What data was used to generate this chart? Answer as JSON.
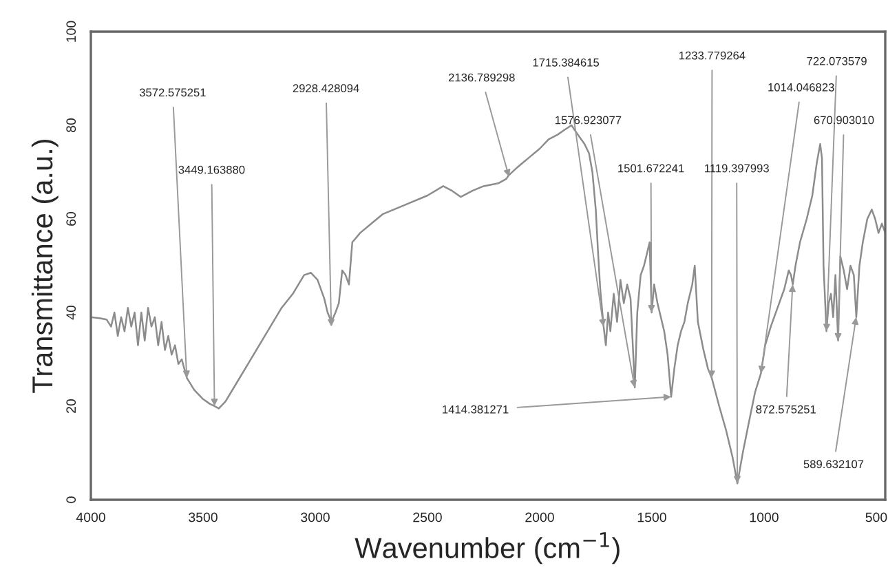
{
  "chart_data": {
    "type": "line",
    "xlabel": "Wavenumber (cm$^{−1}$)",
    "ylabel": "Transmittance (a.u.)",
    "xlim": [
      4000,
      460
    ],
    "ylim": [
      0,
      100
    ],
    "xticks": [
      4000,
      3500,
      3000,
      2500,
      2000,
      1500,
      1000,
      500
    ],
    "yticks": [
      0,
      20,
      40,
      60,
      80,
      100
    ],
    "grid": false,
    "series": [
      {
        "color": "#8c8c8c",
        "x": [
          4000,
          3960,
          3930,
          3910,
          3895,
          3880,
          3865,
          3850,
          3835,
          3820,
          3805,
          3790,
          3775,
          3760,
          3745,
          3730,
          3715,
          3700,
          3685,
          3670,
          3655,
          3640,
          3625,
          3610,
          3595,
          3572,
          3540,
          3500,
          3470,
          3449,
          3430,
          3400,
          3350,
          3300,
          3250,
          3200,
          3150,
          3100,
          3050,
          3020,
          2990,
          2960,
          2945,
          2928,
          2910,
          2895,
          2880,
          2865,
          2850,
          2835,
          2800,
          2750,
          2700,
          2600,
          2500,
          2430,
          2390,
          2352,
          2300,
          2250,
          2185,
          2150,
          2136,
          2100,
          2050,
          2000,
          1960,
          1920,
          1890,
          1858,
          1830,
          1800,
          1780,
          1765,
          1750,
          1740,
          1730,
          1715,
          1705,
          1695,
          1685,
          1670,
          1655,
          1640,
          1625,
          1610,
          1595,
          1576,
          1565,
          1550,
          1535,
          1520,
          1510,
          1501,
          1490,
          1475,
          1460,
          1445,
          1430,
          1414,
          1400,
          1385,
          1370,
          1355,
          1340,
          1320,
          1309,
          1295,
          1270,
          1250,
          1233,
          1200,
          1170,
          1140,
          1119,
          1095,
          1070,
          1040,
          1014,
          995,
          970,
          940,
          910,
          890,
          880,
          872,
          860,
          840,
          810,
          785,
          765,
          750,
          742,
          735,
          722,
          712,
          702,
          692,
          682,
          670,
          660,
          645,
          630,
          615,
          600,
          589,
          575,
          560,
          540,
          520,
          505,
          490,
          475,
          460
        ],
        "values": [
          39,
          38.8,
          38.5,
          37,
          40,
          35,
          39,
          36,
          41,
          37,
          40,
          33,
          40,
          34,
          41,
          37,
          39,
          33,
          38,
          32,
          35,
          31,
          33,
          29,
          30,
          26,
          23.5,
          21.5,
          20.5,
          20,
          19.5,
          21,
          25,
          29,
          33,
          37,
          41,
          44,
          48,
          48.5,
          47,
          43,
          40,
          38,
          40,
          42,
          49,
          48,
          46,
          55,
          57,
          59,
          61,
          63,
          65,
          67,
          66,
          64.7,
          66,
          67,
          67.6,
          68.5,
          69.4,
          71,
          73,
          75,
          77,
          78,
          79,
          80,
          78,
          76,
          74,
          70,
          62,
          53,
          45,
          37,
          33,
          40,
          36,
          44,
          38,
          47,
          42,
          46,
          43,
          24,
          40,
          48,
          50,
          53,
          55,
          40,
          46,
          42,
          39,
          36,
          31,
          22,
          28,
          33,
          36,
          38,
          42,
          46,
          50,
          38,
          32,
          28,
          26,
          20,
          15,
          9,
          3.5,
          10,
          16,
          23,
          27,
          33,
          37,
          41,
          45,
          49,
          48,
          46,
          50,
          55,
          60,
          65,
          72,
          76,
          73,
          50,
          36,
          42,
          44,
          39,
          48,
          34,
          52,
          49,
          45,
          50,
          48,
          39,
          50,
          55,
          60,
          62,
          60,
          57,
          59,
          57
        ]
      }
    ],
    "annotations": [
      {
        "text": "3572.575251",
        "x": 3572.575251,
        "y": 26
      },
      {
        "text": "3449.163880",
        "x": 3449.16388,
        "y": 20
      },
      {
        "text": "2928.428094",
        "x": 2928.428094,
        "y": 37
      },
      {
        "text": "2136.789298",
        "x": 2136.789298,
        "y": 69
      },
      {
        "text": "1715.384615",
        "x": 1715.384615,
        "y": 37
      },
      {
        "text": "1576.923077",
        "x": 1576.923077,
        "y": 24
      },
      {
        "text": "1501.672241",
        "x": 1501.672241,
        "y": 40
      },
      {
        "text": "1414.381271",
        "x": 1414.381271,
        "y": 22
      },
      {
        "text": "1233.779264",
        "x": 1233.779264,
        "y": 26
      },
      {
        "text": "1119.397993",
        "x": 1119.397993,
        "y": 3.5
      },
      {
        "text": "1014.046823",
        "x": 1014.046823,
        "y": 27
      },
      {
        "text": "872.575251",
        "x": 872.575251,
        "y": 46
      },
      {
        "text": "722.073579",
        "x": 722.073579,
        "y": 36
      },
      {
        "text": "670.903010",
        "x": 670.90301,
        "y": 34
      },
      {
        "text": "589.632107",
        "x": 589.632107,
        "y": 39
      }
    ]
  }
}
